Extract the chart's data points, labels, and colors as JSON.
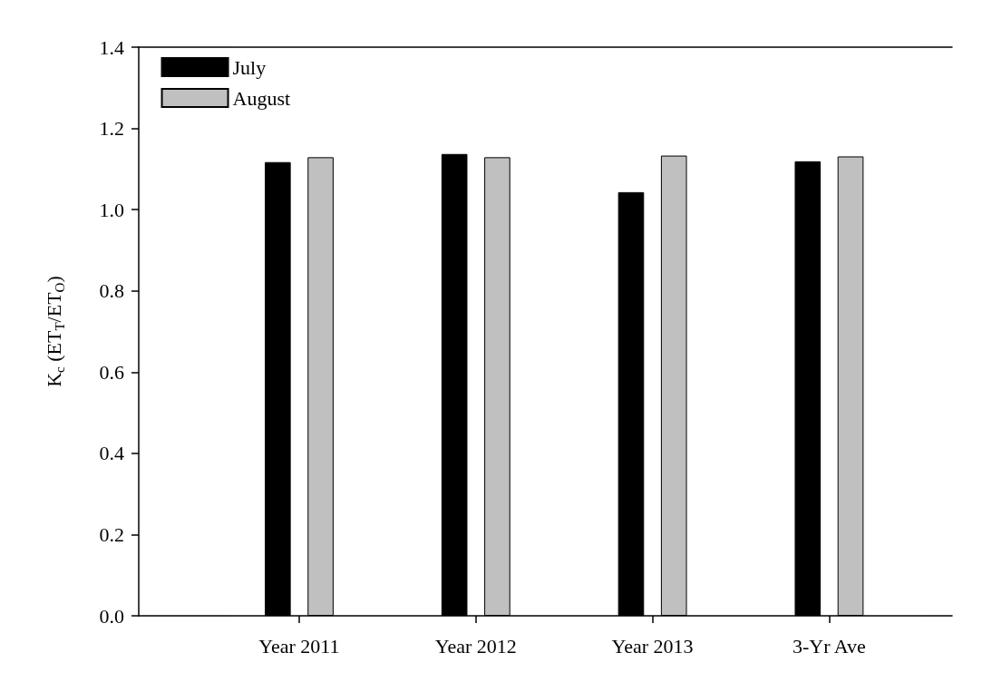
{
  "chart_data": {
    "type": "bar",
    "ylabel": "K$_{c}$ (ET$_{T}$/ET$_{O}$)",
    "categories": [
      "Year 2011",
      "Year 2012",
      "Year 2013",
      "3-Yr Ave"
    ],
    "series": [
      {
        "name": "July",
        "color": "#000000",
        "values": [
          1.117,
          1.137,
          1.043,
          1.119
        ]
      },
      {
        "name": "August",
        "color": "#c0c0c0",
        "values": [
          1.129,
          1.129,
          1.133,
          1.131
        ]
      }
    ],
    "ylim": [
      0,
      1.4
    ],
    "yticks": [
      {
        "value": 0,
        "label": "0.0"
      },
      0.2,
      0.4,
      0.6,
      0.8,
      {
        "value": 1,
        "label": "1.0"
      },
      1.2,
      1.4
    ],
    "grid": false,
    "legend": "top left"
  }
}
